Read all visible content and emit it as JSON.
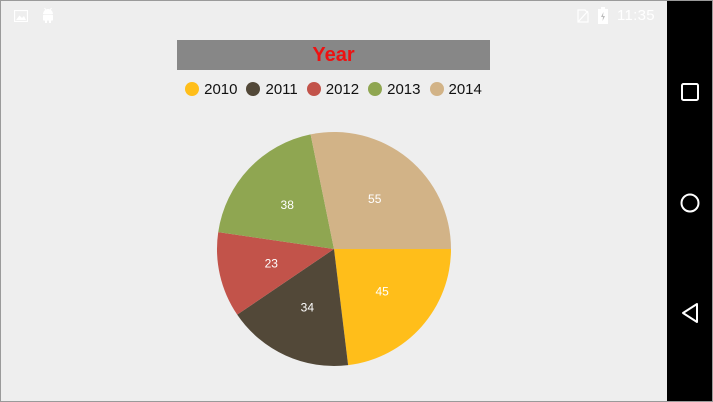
{
  "status_bar": {
    "time": "11:35",
    "icons": [
      "gallery-icon",
      "android-icon",
      "no-sim-icon",
      "battery-icon"
    ]
  },
  "nav_bar": {
    "buttons": [
      "recents-icon",
      "home-icon",
      "back-icon"
    ]
  },
  "chart_data": {
    "type": "pie",
    "title": "Year",
    "categories": [
      "2010",
      "2011",
      "2012",
      "2013",
      "2014"
    ],
    "values": [
      45,
      34,
      23,
      38,
      55
    ],
    "colors": [
      "#ffbe1a",
      "#524838",
      "#c2534a",
      "#8fa651",
      "#d2b387"
    ],
    "legend_position": "top",
    "data_labels": true,
    "title_color": "#ee1111",
    "title_background": "#878787"
  }
}
